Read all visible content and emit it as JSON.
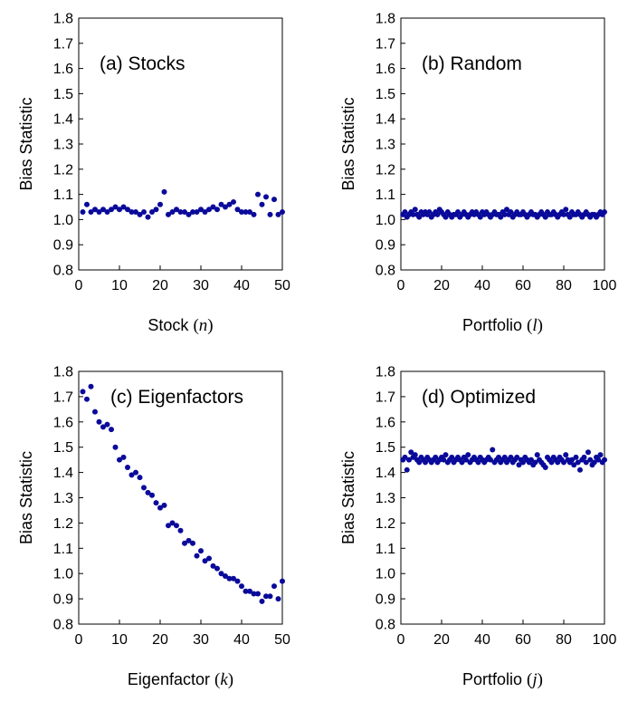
{
  "chart_data": [
    {
      "type": "scatter",
      "title": "(a) Stocks",
      "xlabel_text": "Stock ",
      "xlabel_var": "n",
      "ylabel": "Bias Statistic",
      "xlim": [
        0,
        50
      ],
      "ylim": [
        0.8,
        1.8
      ],
      "xticks": [
        0,
        10,
        20,
        30,
        40,
        50
      ],
      "yticks": [
        0.8,
        0.9,
        1.0,
        1.1,
        1.2,
        1.3,
        1.4,
        1.5,
        1.6,
        1.7,
        1.8
      ],
      "color": "#0a0a9a",
      "x": [
        1,
        2,
        3,
        4,
        5,
        6,
        7,
        8,
        9,
        10,
        11,
        12,
        13,
        14,
        15,
        16,
        17,
        18,
        19,
        20,
        21,
        22,
        23,
        24,
        25,
        26,
        27,
        28,
        29,
        30,
        31,
        32,
        33,
        34,
        35,
        36,
        37,
        38,
        39,
        40,
        41,
        42,
        43,
        44,
        45,
        46,
        47,
        48,
        49,
        50
      ],
      "y": [
        1.03,
        1.06,
        1.03,
        1.04,
        1.03,
        1.04,
        1.03,
        1.04,
        1.05,
        1.04,
        1.05,
        1.04,
        1.03,
        1.03,
        1.02,
        1.03,
        1.01,
        1.03,
        1.04,
        1.06,
        1.11,
        1.02,
        1.03,
        1.04,
        1.03,
        1.03,
        1.02,
        1.03,
        1.03,
        1.04,
        1.03,
        1.04,
        1.05,
        1.04,
        1.06,
        1.05,
        1.06,
        1.07,
        1.04,
        1.03,
        1.03,
        1.03,
        1.02,
        1.1,
        1.06,
        1.09,
        1.02,
        1.08,
        1.02,
        1.03
      ]
    },
    {
      "type": "scatter",
      "title": "(b) Random",
      "xlabel_text": "Portfolio ",
      "xlabel_var": "l",
      "ylabel": "Bias Statistic",
      "xlim": [
        0,
        100
      ],
      "ylim": [
        0.8,
        1.8
      ],
      "xticks": [
        0,
        20,
        40,
        60,
        80,
        100
      ],
      "yticks": [
        0.8,
        0.9,
        1.0,
        1.1,
        1.2,
        1.3,
        1.4,
        1.5,
        1.6,
        1.7,
        1.8
      ],
      "color": "#0a0a9a",
      "x": [
        1,
        2,
        3,
        4,
        5,
        6,
        7,
        8,
        9,
        10,
        11,
        12,
        13,
        14,
        15,
        16,
        17,
        18,
        19,
        20,
        21,
        22,
        23,
        24,
        25,
        26,
        27,
        28,
        29,
        30,
        31,
        32,
        33,
        34,
        35,
        36,
        37,
        38,
        39,
        40,
        41,
        42,
        43,
        44,
        45,
        46,
        47,
        48,
        49,
        50,
        51,
        52,
        53,
        54,
        55,
        56,
        57,
        58,
        59,
        60,
        61,
        62,
        63,
        64,
        65,
        66,
        67,
        68,
        69,
        70,
        71,
        72,
        73,
        74,
        75,
        76,
        77,
        78,
        79,
        80,
        81,
        82,
        83,
        84,
        85,
        86,
        87,
        88,
        89,
        90,
        91,
        92,
        93,
        94,
        95,
        96,
        97,
        98,
        99,
        100
      ],
      "y": [
        1.02,
        1.03,
        1.01,
        1.02,
        1.03,
        1.02,
        1.04,
        1.02,
        1.01,
        1.03,
        1.02,
        1.03,
        1.02,
        1.03,
        1.01,
        1.02,
        1.03,
        1.02,
        1.04,
        1.03,
        1.02,
        1.01,
        1.03,
        1.02,
        1.01,
        1.02,
        1.02,
        1.03,
        1.01,
        1.02,
        1.03,
        1.02,
        1.01,
        1.02,
        1.03,
        1.02,
        1.03,
        1.02,
        1.01,
        1.03,
        1.02,
        1.03,
        1.02,
        1.01,
        1.02,
        1.03,
        1.02,
        1.02,
        1.01,
        1.03,
        1.02,
        1.04,
        1.02,
        1.03,
        1.01,
        1.02,
        1.03,
        1.02,
        1.02,
        1.03,
        1.02,
        1.01,
        1.02,
        1.03,
        1.02,
        1.02,
        1.01,
        1.02,
        1.03,
        1.02,
        1.01,
        1.03,
        1.02,
        1.02,
        1.03,
        1.02,
        1.01,
        1.02,
        1.03,
        1.02,
        1.04,
        1.02,
        1.01,
        1.03,
        1.02,
        1.02,
        1.03,
        1.02,
        1.01,
        1.02,
        1.03,
        1.02,
        1.01,
        1.02,
        1.02,
        1.01,
        1.02,
        1.03,
        1.02,
        1.03
      ]
    },
    {
      "type": "scatter",
      "title": "(c) Eigenfactors",
      "xlabel_text": "Eigenfactor ",
      "xlabel_var": "k",
      "ylabel": "Bias Statistic",
      "xlim": [
        0,
        50
      ],
      "ylim": [
        0.8,
        1.8
      ],
      "xticks": [
        0,
        10,
        20,
        30,
        40,
        50
      ],
      "yticks": [
        0.8,
        0.9,
        1.0,
        1.1,
        1.2,
        1.3,
        1.4,
        1.5,
        1.6,
        1.7,
        1.8
      ],
      "color": "#0a0a9a",
      "x": [
        1,
        2,
        3,
        4,
        5,
        6,
        7,
        8,
        9,
        10,
        11,
        12,
        13,
        14,
        15,
        16,
        17,
        18,
        19,
        20,
        21,
        22,
        23,
        24,
        25,
        26,
        27,
        28,
        29,
        30,
        31,
        32,
        33,
        34,
        35,
        36,
        37,
        38,
        39,
        40,
        41,
        42,
        43,
        44,
        45,
        46,
        47,
        48,
        49,
        50
      ],
      "y": [
        1.72,
        1.69,
        1.74,
        1.64,
        1.6,
        1.58,
        1.59,
        1.57,
        1.5,
        1.45,
        1.46,
        1.42,
        1.39,
        1.4,
        1.38,
        1.34,
        1.32,
        1.31,
        1.28,
        1.26,
        1.27,
        1.19,
        1.2,
        1.19,
        1.17,
        1.12,
        1.13,
        1.12,
        1.07,
        1.09,
        1.05,
        1.06,
        1.03,
        1.02,
        1.0,
        0.99,
        0.98,
        0.98,
        0.97,
        0.95,
        0.93,
        0.93,
        0.92,
        0.92,
        0.89,
        0.91,
        0.91,
        0.95,
        0.9,
        0.97
      ]
    },
    {
      "type": "scatter",
      "title": "(d) Optimized",
      "xlabel_text": "Portfolio ",
      "xlabel_var": "j",
      "ylabel": "Bias Statistic",
      "xlim": [
        0,
        100
      ],
      "ylim": [
        0.8,
        1.8
      ],
      "xticks": [
        0,
        20,
        40,
        60,
        80,
        100
      ],
      "yticks": [
        0.8,
        0.9,
        1.0,
        1.1,
        1.2,
        1.3,
        1.4,
        1.5,
        1.6,
        1.7,
        1.8
      ],
      "color": "#0a0a9a",
      "x": [
        1,
        2,
        3,
        4,
        5,
        6,
        7,
        8,
        9,
        10,
        11,
        12,
        13,
        14,
        15,
        16,
        17,
        18,
        19,
        20,
        21,
        22,
        23,
        24,
        25,
        26,
        27,
        28,
        29,
        30,
        31,
        32,
        33,
        34,
        35,
        36,
        37,
        38,
        39,
        40,
        41,
        42,
        43,
        44,
        45,
        46,
        47,
        48,
        49,
        50,
        51,
        52,
        53,
        54,
        55,
        56,
        57,
        58,
        59,
        60,
        61,
        62,
        63,
        64,
        65,
        66,
        67,
        68,
        69,
        70,
        71,
        72,
        73,
        74,
        75,
        76,
        77,
        78,
        79,
        80,
        81,
        82,
        83,
        84,
        85,
        86,
        87,
        88,
        89,
        90,
        91,
        92,
        93,
        94,
        95,
        96,
        97,
        98,
        99,
        100
      ],
      "y": [
        1.45,
        1.46,
        1.41,
        1.45,
        1.48,
        1.46,
        1.47,
        1.45,
        1.44,
        1.46,
        1.45,
        1.44,
        1.46,
        1.45,
        1.44,
        1.45,
        1.46,
        1.44,
        1.45,
        1.46,
        1.45,
        1.47,
        1.44,
        1.45,
        1.46,
        1.44,
        1.45,
        1.46,
        1.45,
        1.44,
        1.46,
        1.45,
        1.47,
        1.44,
        1.45,
        1.46,
        1.45,
        1.44,
        1.46,
        1.45,
        1.44,
        1.45,
        1.46,
        1.45,
        1.49,
        1.44,
        1.45,
        1.46,
        1.44,
        1.45,
        1.46,
        1.44,
        1.45,
        1.46,
        1.44,
        1.45,
        1.46,
        1.43,
        1.45,
        1.44,
        1.46,
        1.45,
        1.44,
        1.45,
        1.43,
        1.44,
        1.47,
        1.45,
        1.44,
        1.43,
        1.42,
        1.46,
        1.45,
        1.44,
        1.46,
        1.45,
        1.44,
        1.46,
        1.45,
        1.44,
        1.47,
        1.45,
        1.44,
        1.45,
        1.43,
        1.46,
        1.44,
        1.41,
        1.45,
        1.46,
        1.44,
        1.48,
        1.45,
        1.43,
        1.44,
        1.46,
        1.45,
        1.47,
        1.44,
        1.45
      ]
    }
  ]
}
